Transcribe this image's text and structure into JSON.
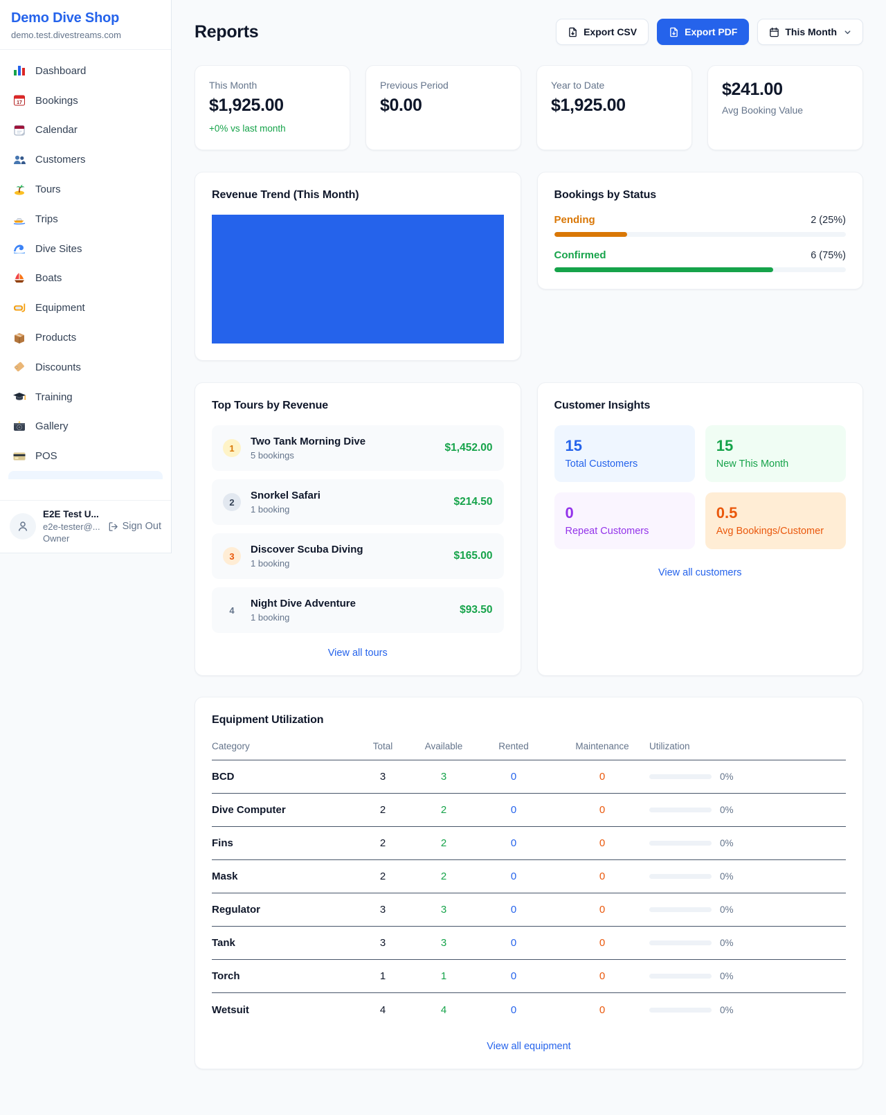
{
  "theme": {
    "accent": "#2563eb",
    "green": "#16a34a",
    "orange": "#ea580c",
    "amber": "#d97706",
    "purple": "#9333ea"
  },
  "sidebar": {
    "brand": {
      "name": "Demo Dive Shop",
      "domain": "demo.test.divestreams.com"
    },
    "items": [
      {
        "label": "Dashboard",
        "icon": "bar-chart-icon"
      },
      {
        "label": "Bookings",
        "icon": "calendar-date-icon"
      },
      {
        "label": "Calendar",
        "icon": "tear-calendar-icon"
      },
      {
        "label": "Customers",
        "icon": "two-people-icon"
      },
      {
        "label": "Tours",
        "icon": "island-icon"
      },
      {
        "label": "Trips",
        "icon": "speedboat-icon"
      },
      {
        "label": "Dive Sites",
        "icon": "wave-icon"
      },
      {
        "label": "Boats",
        "icon": "sailboat-icon"
      },
      {
        "label": "Equipment",
        "icon": "dive-mask-icon"
      },
      {
        "label": "Products",
        "icon": "package-icon"
      },
      {
        "label": "Discounts",
        "icon": "tag-icon"
      },
      {
        "label": "Training",
        "icon": "graduation-cap-icon"
      },
      {
        "label": "Gallery",
        "icon": "camera-icon"
      },
      {
        "label": "POS",
        "icon": "credit-card-icon"
      }
    ],
    "user": {
      "name": "E2E Test U...",
      "email": "e2e-tester@...",
      "role": "Owner",
      "sign_out_label": "Sign Out"
    }
  },
  "header": {
    "title": "Reports",
    "export_csv_label": "Export CSV",
    "export_pdf_label": "Export PDF",
    "period_label": "This Month"
  },
  "stats": [
    {
      "label": "This Month",
      "value": "$1,925.00",
      "delta": "+0% vs last month"
    },
    {
      "label": "Previous Period",
      "value": "$0.00"
    },
    {
      "label": "Year to Date",
      "value": "$1,925.00"
    },
    {
      "label": "Avg Booking Value",
      "value": "$241.00"
    }
  ],
  "revenue_trend": {
    "title": "Revenue Trend (This Month)",
    "chart_color": "#2563eb"
  },
  "bookings_by_status": {
    "title": "Bookings by Status",
    "rows": [
      {
        "label": "Pending",
        "count_text": "2 (25%)",
        "percent": 25,
        "color": "#d97706"
      },
      {
        "label": "Confirmed",
        "count_text": "6 (75%)",
        "percent": 75,
        "color": "#16a34a"
      }
    ]
  },
  "top_tours": {
    "title": "Top Tours by Revenue",
    "link": "View all tours",
    "items": [
      {
        "rank": "1",
        "name": "Two Tank Morning Dive",
        "bookings": "5 bookings",
        "revenue": "$1,452.00",
        "badge_bg": "#fef3c7",
        "badge_color": "#d97706"
      },
      {
        "rank": "2",
        "name": "Snorkel Safari",
        "bookings": "1 booking",
        "revenue": "$214.50",
        "badge_bg": "#e2e8f0",
        "badge_color": "#334155"
      },
      {
        "rank": "3",
        "name": "Discover Scuba Diving",
        "bookings": "1 booking",
        "revenue": "$165.00",
        "badge_bg": "#ffedd5",
        "badge_color": "#ea580c"
      },
      {
        "rank": "4",
        "name": "Night Dive Adventure",
        "bookings": "1 booking",
        "revenue": "$93.50",
        "badge_bg": "transparent",
        "badge_color": "#64748b"
      }
    ]
  },
  "customer_insights": {
    "title": "Customer Insights",
    "link": "View all customers",
    "cards": [
      {
        "value": "15",
        "label": "Total Customers",
        "bg": "#eff6ff",
        "color": "#2563eb"
      },
      {
        "value": "15",
        "label": "New This Month",
        "bg": "#f0fdf4",
        "color": "#16a34a"
      },
      {
        "value": "0",
        "label": "Repeat Customers",
        "bg": "#faf5ff",
        "color": "#9333ea"
      },
      {
        "value": "0.5",
        "label": "Avg Bookings/Customer",
        "bg": "#ffedd5",
        "color": "#ea580c"
      }
    ]
  },
  "equipment": {
    "title": "Equipment Utilization",
    "link": "View all equipment",
    "columns": [
      "Category",
      "Total",
      "Available",
      "Rented",
      "Maintenance",
      "Utilization"
    ],
    "rows": [
      {
        "category": "BCD",
        "total": "3",
        "available": "3",
        "rented": "0",
        "maintenance": "0",
        "utilization": "0%",
        "utilization_percent": 0
      },
      {
        "category": "Dive Computer",
        "total": "2",
        "available": "2",
        "rented": "0",
        "maintenance": "0",
        "utilization": "0%",
        "utilization_percent": 0
      },
      {
        "category": "Fins",
        "total": "2",
        "available": "2",
        "rented": "0",
        "maintenance": "0",
        "utilization": "0%",
        "utilization_percent": 0
      },
      {
        "category": "Mask",
        "total": "2",
        "available": "2",
        "rented": "0",
        "maintenance": "0",
        "utilization": "0%",
        "utilization_percent": 0
      },
      {
        "category": "Regulator",
        "total": "3",
        "available": "3",
        "rented": "0",
        "maintenance": "0",
        "utilization": "0%",
        "utilization_percent": 0
      },
      {
        "category": "Tank",
        "total": "3",
        "available": "3",
        "rented": "0",
        "maintenance": "0",
        "utilization": "0%",
        "utilization_percent": 0
      },
      {
        "category": "Torch",
        "total": "1",
        "available": "1",
        "rented": "0",
        "maintenance": "0",
        "utilization": "0%",
        "utilization_percent": 0
      },
      {
        "category": "Wetsuit",
        "total": "4",
        "available": "4",
        "rented": "0",
        "maintenance": "0",
        "utilization": "0%",
        "utilization_percent": 0
      }
    ]
  }
}
